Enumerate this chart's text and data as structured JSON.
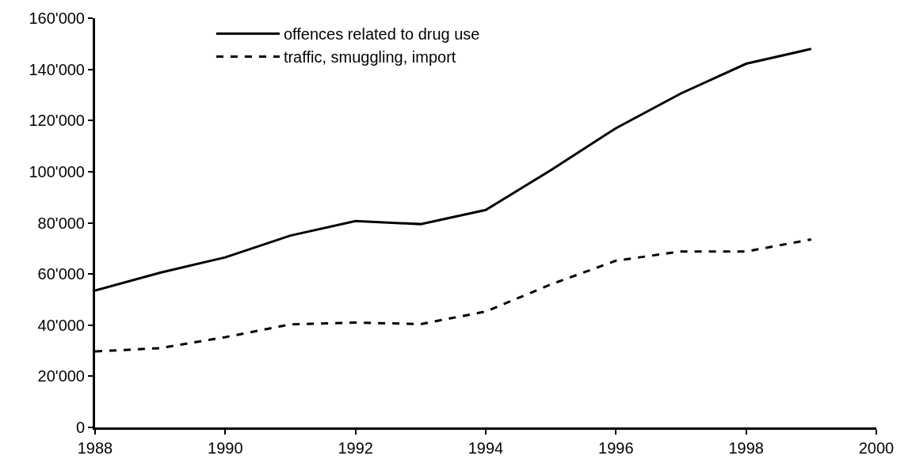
{
  "chart_data": {
    "type": "line",
    "x": [
      1988,
      1989,
      1990,
      1991,
      1992,
      1993,
      1994,
      1995,
      1996,
      1997,
      1998,
      1999
    ],
    "series": [
      {
        "name": "offences related to drug use",
        "color": "#000000",
        "line_style": "solid",
        "values": [
          53500,
          60500,
          66500,
          75000,
          80700,
          79500,
          85000,
          100600,
          117000,
          130600,
          142200,
          148000
        ]
      },
      {
        "name": "traffic, smuggling, import",
        "color": "#000000",
        "line_style": "dashed",
        "values": [
          29700,
          31000,
          35300,
          40300,
          41000,
          40400,
          45300,
          55900,
          65200,
          68800,
          68800,
          73500
        ]
      }
    ],
    "xlim": [
      1988,
      2000
    ],
    "xticks": [
      1988,
      1990,
      1992,
      1994,
      1996,
      1998,
      2000
    ],
    "ylim": [
      0,
      160000
    ],
    "yticks": [
      0,
      {
        "value": 20000,
        "label": "20'000"
      },
      {
        "value": 40000,
        "label": "40'000"
      },
      {
        "value": 60000,
        "label": "60'000"
      },
      {
        "value": 80000,
        "label": "80'000"
      },
      {
        "value": 100000,
        "label": "100'000"
      },
      {
        "value": 120000,
        "label": "120'000"
      },
      {
        "value": 140000,
        "label": "140'000"
      },
      {
        "value": 160000,
        "label": "160'000"
      }
    ],
    "legend": "top",
    "marker": "none"
  }
}
